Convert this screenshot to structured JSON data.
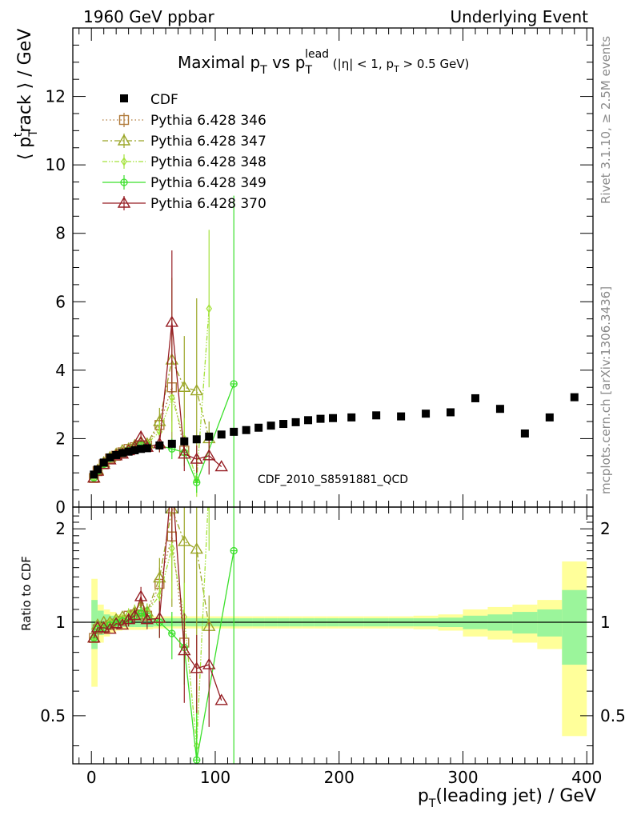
{
  "header": {
    "left": "1960 GeV ppbar",
    "right": "Underlying Event"
  },
  "side": {
    "top": "Rivet 3.1.10, ≥ 2.5M events",
    "bottom": "mcplots.cern.ch [arXiv:1306.3436]"
  },
  "watermark": "CDF_2010_S8591881_QCD",
  "chart_data": {
    "type": "line",
    "title": {
      "main": "Maximal p",
      "sub1": "T",
      "mid": " vs p",
      "sub2": "T",
      "sup": "lead",
      "tail": " (|η| < 1, p",
      "sub3": "T",
      "end": " > 0.5 GeV)"
    },
    "ylabel": "⟨ p^t_T rack ⟩ / GeV",
    "ratio_ylabel": "Ratio to CDF",
    "xlabel": "p_T(leading jet) / GeV",
    "xlim": [
      -15,
      405
    ],
    "ylim": [
      0,
      14
    ],
    "ratio_ylim": [
      0.35,
      2.35
    ],
    "x_ticks": [
      0,
      100,
      200,
      300,
      400
    ],
    "y_ticks": [
      2,
      4,
      6,
      8,
      10,
      12
    ],
    "ratio_ticks": [
      0.5,
      1,
      2
    ],
    "legend_position": "top-left",
    "reference": {
      "name": "CDF",
      "x": [
        2,
        5,
        10,
        15,
        20,
        25,
        30,
        35,
        40,
        45,
        55,
        65,
        75,
        85,
        95,
        105,
        115,
        125,
        135,
        145,
        155,
        165,
        175,
        185,
        195,
        210,
        230,
        250,
        270,
        290,
        310,
        330,
        350,
        370,
        390
      ],
      "y": [
        0.95,
        1.1,
        1.3,
        1.45,
        1.52,
        1.58,
        1.62,
        1.66,
        1.7,
        1.72,
        1.8,
        1.85,
        1.92,
        1.98,
        2.06,
        2.12,
        2.2,
        2.25,
        2.32,
        2.38,
        2.43,
        2.48,
        2.54,
        2.58,
        2.6,
        2.62,
        2.68,
        2.65,
        2.73,
        2.77,
        3.18,
        2.87,
        2.15,
        2.62,
        3.21
      ],
      "band_x": [
        0,
        5,
        10,
        15,
        20,
        25,
        30,
        35,
        40,
        45,
        50,
        60,
        70,
        80,
        90,
        100,
        110,
        120,
        130,
        140,
        150,
        160,
        170,
        180,
        190,
        200,
        220,
        240,
        260,
        280,
        300,
        320,
        340,
        360,
        380,
        400
      ],
      "band_inner": [
        0.18,
        0.09,
        0.06,
        0.05,
        0.04,
        0.035,
        0.035,
        0.035,
        0.035,
        0.035,
        0.03,
        0.03,
        0.03,
        0.03,
        0.03,
        0.03,
        0.03,
        0.03,
        0.03,
        0.03,
        0.03,
        0.03,
        0.03,
        0.03,
        0.03,
        0.03,
        0.03,
        0.03,
        0.03,
        0.035,
        0.05,
        0.06,
        0.08,
        0.1,
        0.27
      ],
      "band_outer": [
        0.38,
        0.14,
        0.1,
        0.08,
        0.06,
        0.055,
        0.055,
        0.055,
        0.055,
        0.05,
        0.045,
        0.045,
        0.045,
        0.045,
        0.045,
        0.045,
        0.045,
        0.045,
        0.045,
        0.045,
        0.045,
        0.045,
        0.045,
        0.045,
        0.045,
        0.045,
        0.045,
        0.045,
        0.05,
        0.06,
        0.1,
        0.12,
        0.14,
        0.18,
        0.57
      ]
    },
    "series": [
      {
        "name": "Pythia 6.428 346",
        "color": "#b07a3a",
        "marker": "square",
        "dash": "1.5,3",
        "x": [
          2,
          5,
          10,
          15,
          20,
          25,
          30,
          35,
          40,
          45,
          55,
          65,
          75
        ],
        "y": [
          0.85,
          1.05,
          1.25,
          1.42,
          1.5,
          1.6,
          1.7,
          1.75,
          1.8,
          1.8,
          2.4,
          3.5,
          1.65
        ],
        "err": [
          0,
          0,
          0,
          0,
          0,
          0,
          0.08,
          0.1,
          0.1,
          0.12,
          0.3,
          1.0,
          0.2
        ],
        "ratio": [
          0.89,
          0.95,
          0.96,
          0.98,
          0.99,
          1.01,
          1.05,
          1.06,
          1.06,
          1.05,
          1.33,
          1.89,
          0.86
        ],
        "ratio_err": [
          0,
          0,
          0,
          0,
          0,
          0,
          0.05,
          0.06,
          0.06,
          0.07,
          0.17,
          0.54,
          0.1
        ]
      },
      {
        "name": "Pythia 6.428 347",
        "color": "#9aa526",
        "marker": "triangle",
        "dash": "7,3,2,3",
        "x": [
          2,
          5,
          10,
          15,
          20,
          25,
          30,
          35,
          40,
          45,
          55,
          65,
          75,
          85,
          95
        ],
        "y": [
          0.85,
          1.08,
          1.3,
          1.45,
          1.55,
          1.65,
          1.7,
          1.8,
          1.9,
          1.85,
          2.5,
          4.3,
          3.5,
          3.4,
          2.0
        ],
        "err": [
          0,
          0,
          0,
          0,
          0,
          0,
          0.08,
          0.1,
          0.1,
          0.12,
          0.4,
          2.4,
          1.5,
          2.7,
          0.5
        ],
        "ratio": [
          0.89,
          0.98,
          1.0,
          1.0,
          1.02,
          1.04,
          1.05,
          1.08,
          1.12,
          1.08,
          1.39,
          2.32,
          1.82,
          1.72,
          0.97
        ],
        "ratio_err": [
          0,
          0,
          0,
          0,
          0,
          0,
          0.05,
          0.06,
          0.06,
          0.07,
          0.22,
          1.2,
          0.75,
          1.3,
          0.25
        ]
      },
      {
        "name": "Pythia 6.428 348",
        "color": "#a4e23a",
        "marker": "diamond",
        "dash": "6,2,1.5,2,1.5,2",
        "x": [
          2,
          5,
          10,
          15,
          20,
          25,
          30,
          35,
          40,
          45,
          55,
          65,
          75,
          85,
          95
        ],
        "y": [
          0.85,
          1.05,
          1.28,
          1.45,
          1.55,
          1.62,
          1.72,
          1.8,
          1.95,
          1.85,
          2.2,
          3.2,
          2.0,
          0.8,
          5.8
        ],
        "err": [
          0,
          0,
          0,
          0,
          0,
          0,
          0.08,
          0.1,
          0.1,
          0.12,
          0.3,
          1.0,
          0.6,
          0.5,
          2.3
        ],
        "ratio": [
          0.89,
          0.96,
          0.98,
          1.0,
          1.02,
          1.03,
          1.06,
          1.08,
          1.15,
          1.08,
          1.22,
          1.73,
          1.04,
          0.4,
          2.8
        ],
        "ratio_err": [
          0,
          0,
          0,
          0,
          0,
          0,
          0.05,
          0.06,
          0.06,
          0.07,
          0.17,
          0.54,
          0.3,
          0.25,
          1.1
        ]
      },
      {
        "name": "Pythia 6.428 349",
        "color": "#3be02b",
        "marker": "circle-plus",
        "dash": "",
        "x": [
          2,
          5,
          10,
          15,
          20,
          25,
          30,
          35,
          40,
          45,
          55,
          65,
          75,
          85,
          115
        ],
        "y": [
          0.85,
          1.05,
          1.25,
          1.42,
          1.52,
          1.6,
          1.65,
          1.75,
          1.82,
          1.8,
          1.8,
          1.7,
          1.6,
          0.72,
          3.6
        ],
        "err": [
          0,
          0,
          0,
          0,
          0,
          0,
          0.08,
          0.1,
          0.1,
          0.12,
          0.2,
          0.3,
          0.4,
          0.3,
          5.5
        ],
        "ratio": [
          0.89,
          0.95,
          0.96,
          0.98,
          1.0,
          1.01,
          1.02,
          1.05,
          1.07,
          1.05,
          1.0,
          0.92,
          0.83,
          0.36,
          1.7
        ],
        "ratio_err": [
          0,
          0,
          0,
          0,
          0,
          0,
          0.05,
          0.06,
          0.06,
          0.07,
          0.11,
          0.16,
          0.2,
          0.15,
          2.6
        ]
      },
      {
        "name": "Pythia 6.428 370",
        "color": "#961e24",
        "marker": "triangle",
        "dash": "",
        "x": [
          2,
          5,
          10,
          15,
          20,
          25,
          30,
          35,
          40,
          45,
          55,
          65,
          75,
          85,
          95,
          105
        ],
        "y": [
          0.85,
          1.05,
          1.25,
          1.38,
          1.5,
          1.55,
          1.65,
          1.75,
          2.05,
          1.75,
          1.85,
          5.4,
          1.55,
          1.4,
          1.5,
          1.18
        ],
        "err": [
          0,
          0,
          0,
          0,
          0,
          0,
          0.08,
          0.1,
          0.15,
          0.12,
          0.25,
          2.1,
          0.5,
          0.4,
          0.55,
          0
        ],
        "ratio": [
          0.89,
          0.96,
          0.96,
          0.95,
          0.99,
          0.98,
          1.02,
          1.05,
          1.21,
          1.02,
          1.03,
          2.92,
          0.81,
          0.71,
          0.73,
          0.56
        ],
        "ratio_err": [
          0,
          0,
          0,
          0,
          0,
          0,
          0.05,
          0.06,
          0.09,
          0.07,
          0.14,
          1.1,
          0.26,
          0.2,
          0.27,
          0
        ]
      }
    ]
  }
}
